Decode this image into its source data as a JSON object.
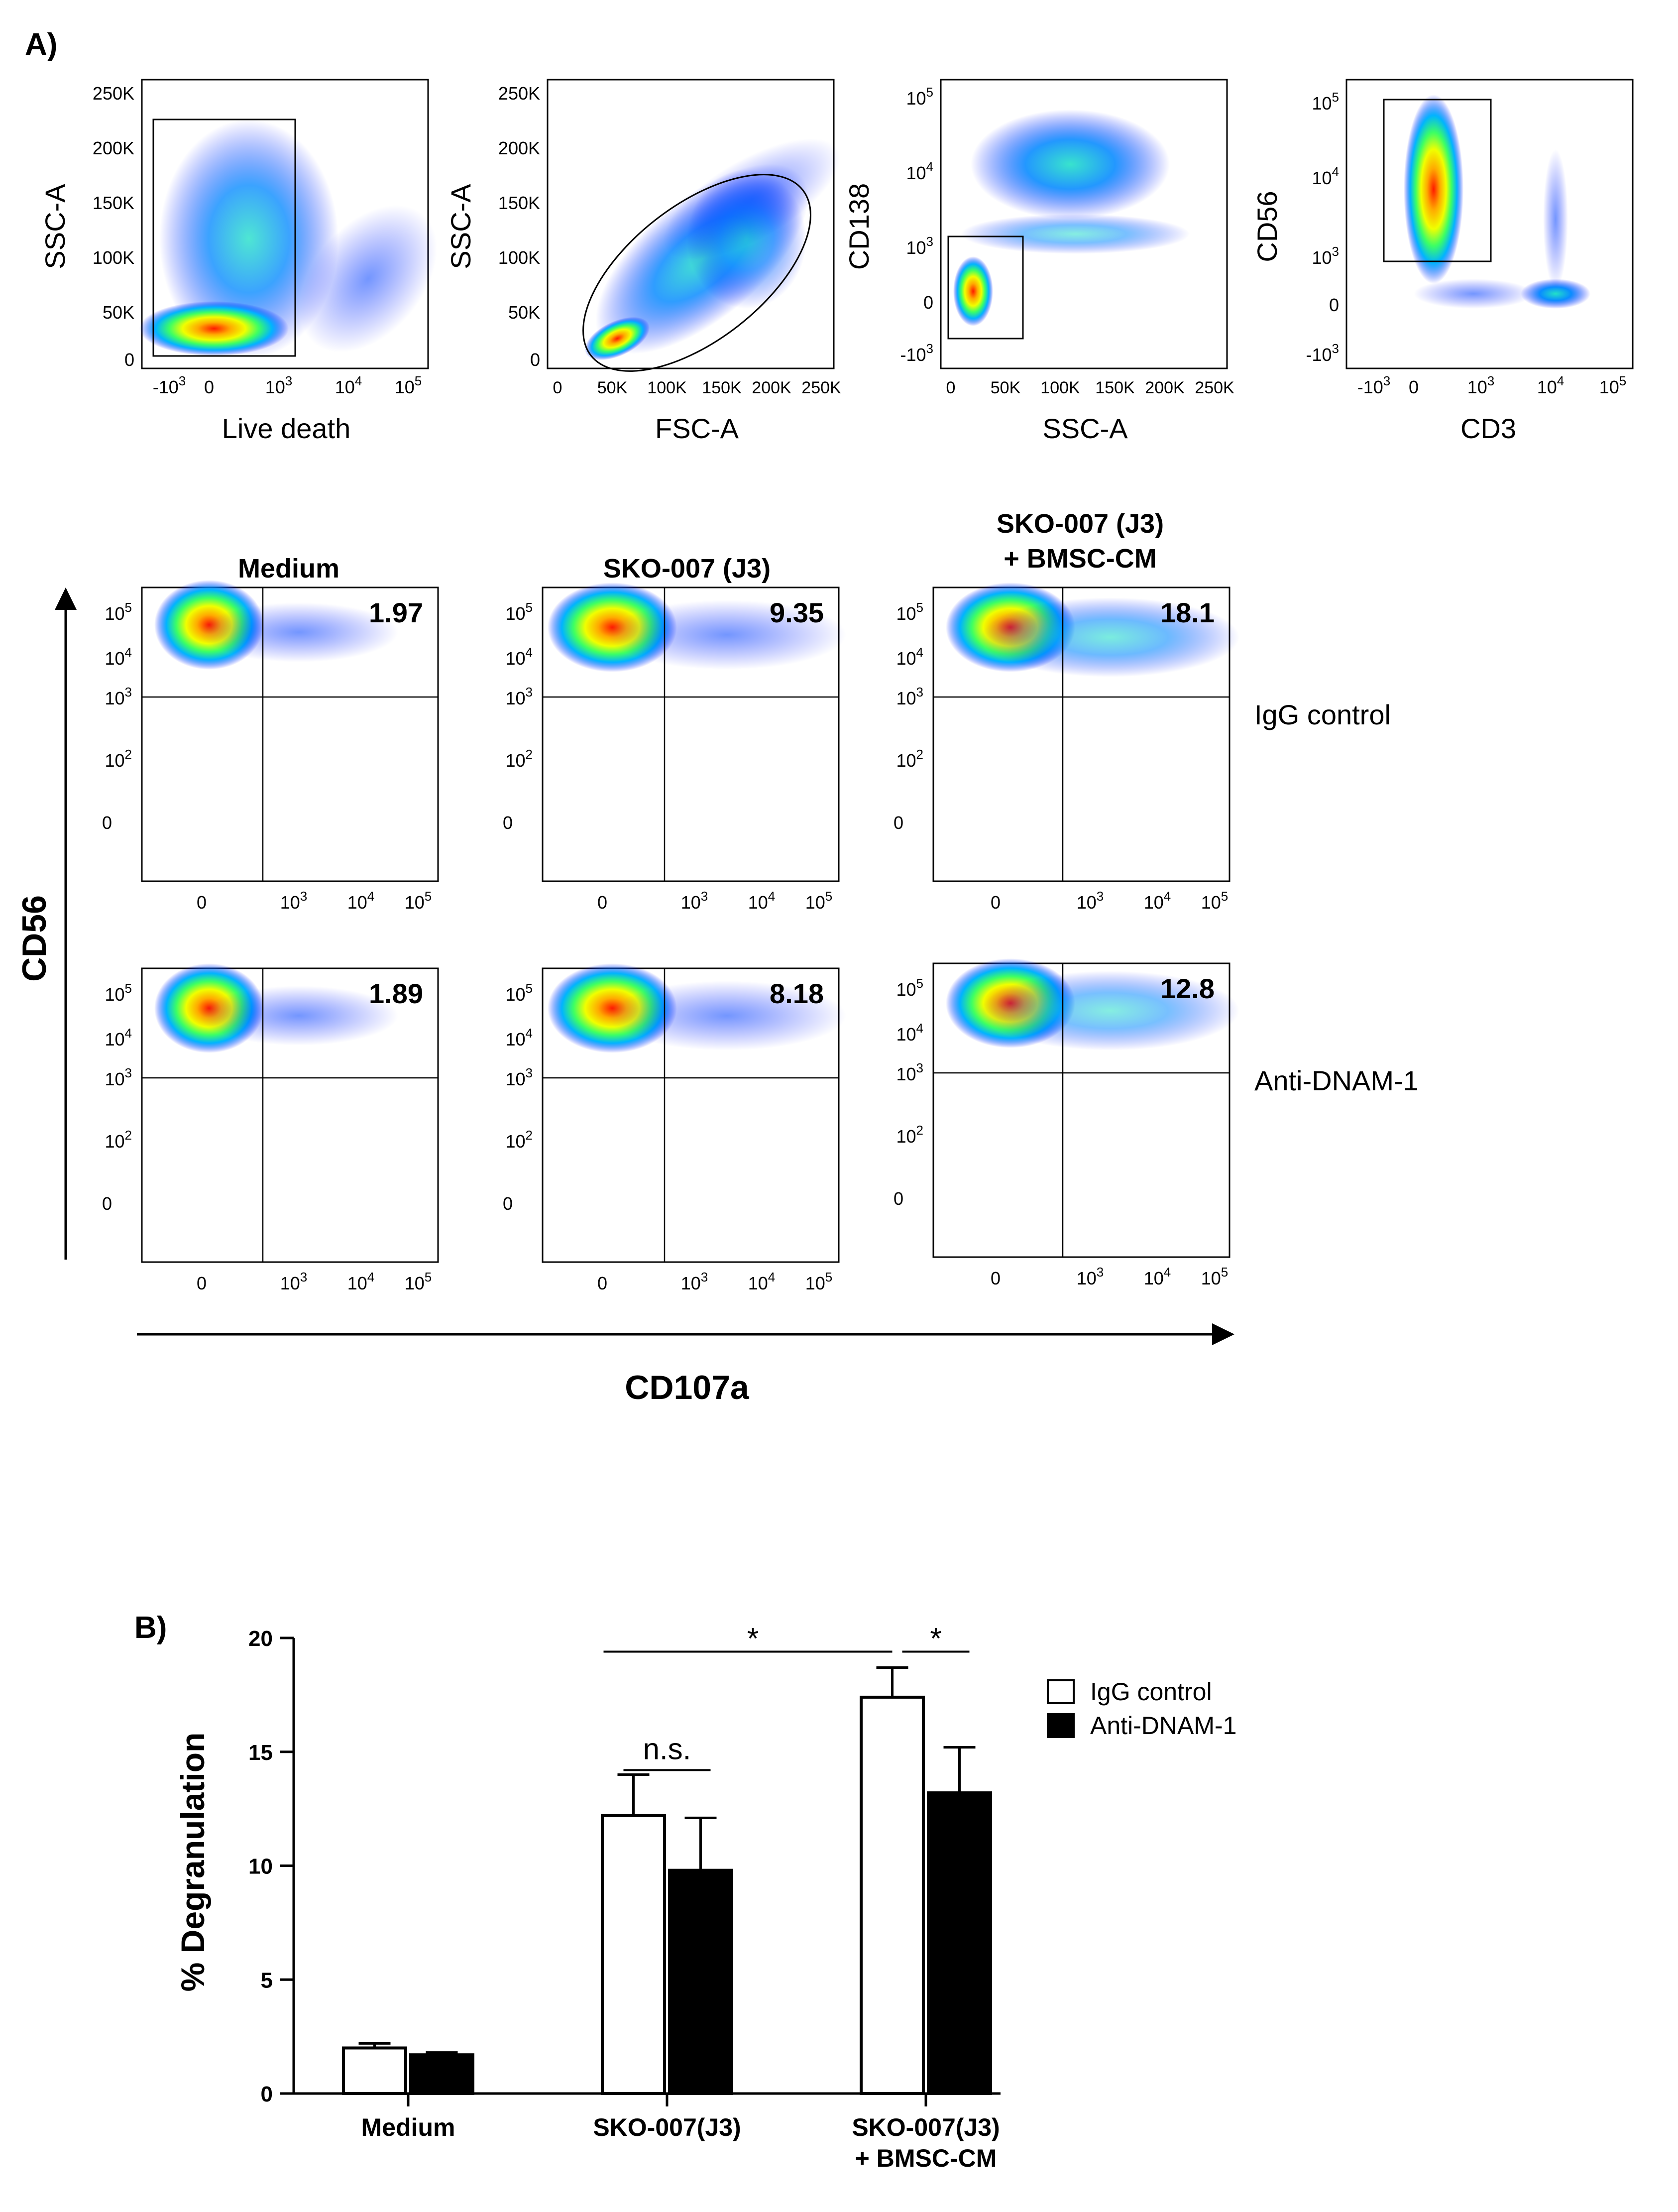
{
  "panel_a_label": "A)",
  "panel_b_label": "B)",
  "gating": {
    "tick_labels": {
      "scatter_y": [
        "250K",
        "200K",
        "150K",
        "100K",
        "50K",
        "0"
      ],
      "scatter_x": [
        "0",
        "50K",
        "100K",
        "150K",
        "200K",
        "250K"
      ],
      "log_axis": [
        "-10",
        "0",
        "10",
        "10",
        "10"
      ],
      "log_exp": [
        "3",
        "",
        "3",
        "4",
        "5"
      ]
    },
    "plots": [
      {
        "xlabel": "Live death",
        "ylabel": "SSC-A",
        "gate": "rectangle"
      },
      {
        "xlabel": "FSC-A",
        "ylabel": "SSC-A",
        "gate": "ellipse"
      },
      {
        "xlabel": "SSC-A",
        "ylabel": "CD138",
        "gate": "rectangle"
      },
      {
        "xlabel": "CD3",
        "ylabel": "CD56",
        "gate": "rectangle"
      }
    ]
  },
  "quadrants": {
    "y_axis_title": "CD56",
    "x_axis_title": "CD107a",
    "y_ticks": [
      "10",
      "10",
      "10",
      "10",
      "0"
    ],
    "y_exps": [
      "5",
      "4",
      "3",
      "2",
      ""
    ],
    "x_ticks": [
      "0",
      "10",
      "10",
      "10"
    ],
    "x_exps": [
      "",
      "3",
      "4",
      "5"
    ],
    "columns": [
      {
        "title_line1": "Medium",
        "title_line2": ""
      },
      {
        "title_line1": "SKO-007 (J3)",
        "title_line2": ""
      },
      {
        "title_line1": "SKO-007 (J3)",
        "title_line2": "+ BMSC-CM"
      }
    ],
    "rows": [
      {
        "label": "IgG control",
        "percentages": [
          "1.97",
          "9.35",
          "18.1"
        ]
      },
      {
        "label": "Anti-DNAM-1",
        "percentages": [
          "1.89",
          "8.18",
          "12.8"
        ]
      }
    ]
  },
  "chart_data": {
    "type": "bar",
    "title": "",
    "ylabel": "% Degranulation",
    "xlabel": "",
    "ylim": [
      0,
      20
    ],
    "yticks": [
      0,
      5,
      10,
      15,
      20
    ],
    "categories": [
      "Medium",
      "SKO-007(J3)",
      "SKO-007(J3) + BMSC-CM"
    ],
    "category_lines": [
      [
        "Medium"
      ],
      [
        "SKO-007(J3)"
      ],
      [
        "SKO-007(J3)",
        "+ BMSC-CM"
      ]
    ],
    "series": [
      {
        "name": "IgG control",
        "color": "#ffffff",
        "values": [
          2.0,
          12.2,
          17.4
        ],
        "errors": [
          0.2,
          1.8,
          1.3
        ]
      },
      {
        "name": "Anti-DNAM-1",
        "color": "#000000",
        "values": [
          1.7,
          9.8,
          13.2
        ],
        "errors": [
          0.1,
          2.3,
          2.0
        ]
      }
    ],
    "legend_position": "top-right",
    "annotations": [
      {
        "text": "n.s.",
        "between": "SKO-007(J3) IgG control vs Anti-DNAM-1"
      },
      {
        "text": "*",
        "between": "SKO-007(J3) IgG control vs SKO-007(J3) + BMSC-CM IgG control"
      },
      {
        "text": "*",
        "between": "SKO-007(J3) + BMSC-CM IgG control vs Anti-DNAM-1"
      }
    ]
  }
}
